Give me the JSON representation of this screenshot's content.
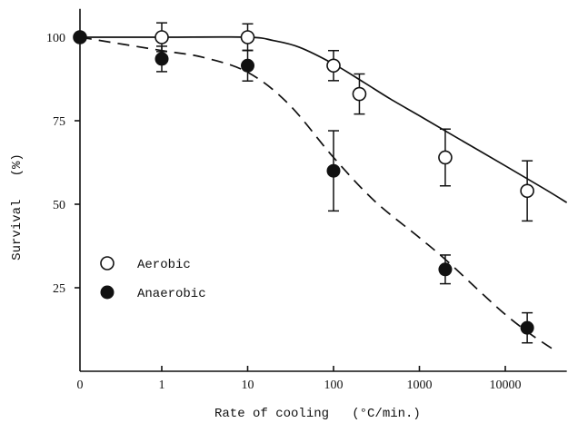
{
  "chart_data": {
    "type": "scatter",
    "xlabel": "Rate of cooling   (°C/min.)",
    "ylabel": "Survival   (%)",
    "xscale": "log",
    "xlim": [
      0,
      52000
    ],
    "ylim": [
      0,
      108.5
    ],
    "xticks": [
      "0",
      "1",
      "10",
      "100",
      "1000",
      "10000"
    ],
    "yticks": [
      "25",
      "50",
      "75",
      "100"
    ],
    "grid": false,
    "legend": "lower-left",
    "series": [
      {
        "name": "Aerobic",
        "filled": false,
        "dashed": false,
        "color": "#111111",
        "points": [
          {
            "x": 0,
            "y": 100
          },
          {
            "x": 1,
            "y": 100,
            "err": 4.3
          },
          {
            "x": 10,
            "y": 100,
            "err": 4
          },
          {
            "x": 100,
            "y": 91.5,
            "err": 4.5
          },
          {
            "x": 200,
            "y": 83,
            "err": 6
          },
          {
            "x": 2000,
            "y": 64,
            "err": 8.5
          },
          {
            "x": 18000,
            "y": 54,
            "err": 9
          }
        ],
        "curve": [
          [
            0,
            100
          ],
          [
            1,
            100
          ],
          [
            10,
            100
          ],
          [
            20,
            99
          ],
          [
            40,
            97
          ],
          [
            100,
            92
          ],
          [
            225,
            86.5
          ],
          [
            460,
            81.5
          ],
          [
            1000,
            76.5
          ],
          [
            2500,
            70.5
          ],
          [
            10000,
            61.5
          ],
          [
            29000,
            54.5
          ],
          [
            52000,
            50.5
          ]
        ]
      },
      {
        "name": "Anaerobic",
        "filled": true,
        "dashed": true,
        "color": "#111111",
        "points": [
          {
            "x": 0,
            "y": 100
          },
          {
            "x": 1,
            "y": 93.5,
            "err": 3.8
          },
          {
            "x": 10,
            "y": 91.5,
            "err": 4.6
          },
          {
            "x": 100,
            "y": 60,
            "err": 12
          },
          {
            "x": 2000,
            "y": 30.5,
            "err": 4.3
          },
          {
            "x": 18000,
            "y": 13,
            "err": 4.5
          }
        ],
        "curve": [
          [
            0,
            100
          ],
          [
            1,
            96
          ],
          [
            3,
            94
          ],
          [
            10,
            89.5
          ],
          [
            30,
            80
          ],
          [
            100,
            64
          ],
          [
            300,
            51
          ],
          [
            1000,
            40
          ],
          [
            2000,
            33.5
          ],
          [
            5000,
            24
          ],
          [
            10000,
            17
          ],
          [
            20000,
            11
          ],
          [
            39000,
            6
          ]
        ]
      }
    ]
  }
}
